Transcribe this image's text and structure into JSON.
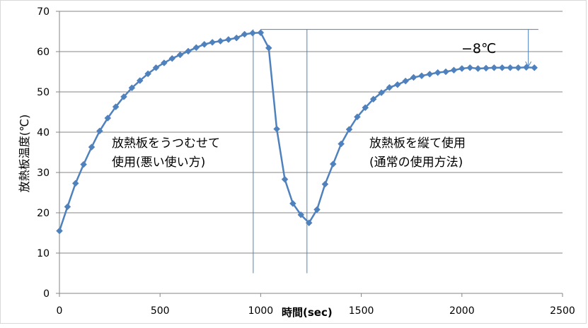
{
  "chart_data": {
    "type": "line",
    "title": "",
    "xlabel": "時間(sec)",
    "ylabel": "放熱板温度(℃)",
    "xlim": [
      0,
      2500
    ],
    "ylim": [
      0,
      70
    ],
    "xticks": [
      0,
      500,
      1000,
      1500,
      2000,
      2500
    ],
    "yticks": [
      0,
      10,
      20,
      30,
      40,
      50,
      60,
      70
    ],
    "grid": "horizontal",
    "legend": "none",
    "series": [
      {
        "color": "#4f81bd",
        "marker": "diamond",
        "x": [
          0,
          40,
          80,
          120,
          160,
          200,
          240,
          280,
          320,
          360,
          400,
          440,
          480,
          520,
          560,
          600,
          640,
          680,
          720,
          760,
          800,
          840,
          880,
          920,
          960,
          1000,
          1040,
          1080,
          1120,
          1160,
          1200,
          1240,
          1280,
          1320,
          1360,
          1400,
          1440,
          1480,
          1520,
          1560,
          1600,
          1640,
          1680,
          1720,
          1760,
          1800,
          1840,
          1880,
          1920,
          1960,
          2000,
          2040,
          2080,
          2120,
          2160,
          2200,
          2240,
          2280,
          2320,
          2360
        ],
        "y": [
          15.5,
          21.5,
          27.3,
          32.0,
          36.3,
          40.3,
          43.5,
          46.3,
          48.8,
          51.0,
          52.8,
          54.5,
          56.0,
          57.2,
          58.3,
          59.2,
          60.1,
          61.0,
          61.8,
          62.3,
          62.6,
          63.0,
          63.4,
          64.3,
          64.6,
          64.7,
          60.9,
          40.8,
          28.3,
          22.3,
          19.5,
          17.5,
          20.8,
          27.1,
          32.1,
          37.1,
          40.7,
          43.8,
          46.1,
          48.2,
          49.8,
          51.1,
          51.8,
          52.7,
          53.6,
          54.0,
          54.4,
          54.8,
          55.0,
          55.4,
          55.8,
          56.0,
          55.8,
          55.9,
          56.0,
          56.0,
          56.0,
          56.0,
          56.1,
          56.0
        ]
      }
    ],
    "annotations": [
      "放熱板をうつむせて",
      "使用(悪い使い方)",
      "放熱板を縦て使用",
      "(通常の使用方法)",
      "−8℃"
    ],
    "reference_lines": {
      "horizontal_level": 65.5,
      "horizontal_x_range": [
        1000,
        2380
      ],
      "vertical_x": [
        963,
        1230
      ],
      "vertical_y_range": [
        5,
        65.5
      ],
      "arrow": {
        "x": 2330,
        "from_y": 65.5,
        "to_y": 56.3
      }
    }
  }
}
